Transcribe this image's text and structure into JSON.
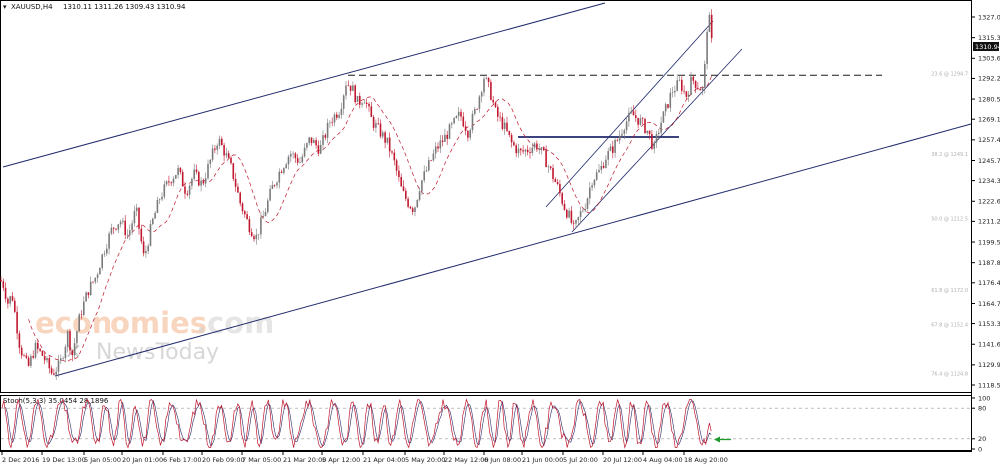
{
  "header": {
    "symbol": "XAUUSD,H4",
    "ohlc": "1310.11 1311.26 1309.43 1310.94"
  },
  "stoch_label": "Stoch(5,3,3) 35.0454 28.1896",
  "current_price": "1310.94",
  "watermark": {
    "part1": "econ",
    "part2": "omies",
    "part3": ".com",
    "part4": "NewsToday"
  },
  "colors": {
    "bull": "#7a7a7a",
    "bear": "#c0182e",
    "channel": "#1f2a6b",
    "dash": "#1a1a1a",
    "stoch_main": "#c0182e",
    "stoch_signal": "#2a2a6b",
    "arrow": "#1e9b2e",
    "fib": "#c8c8c8"
  },
  "chart_data": {
    "type": "candlestick",
    "title": "XAUUSD,H4",
    "price_ticks": [
      1327.0,
      1315.3,
      1303.6,
      1292.2,
      1280.5,
      1269.1,
      1257.4,
      1245.7,
      1234.3,
      1222.6,
      1211.2,
      1199.5,
      1187.8,
      1176.4,
      1164.7,
      1153.3,
      1141.6,
      1129.9,
      1118.5
    ],
    "ylim": [
      1116.7,
      1333.8
    ],
    "time_labels": [
      "2 Dec 2016",
      "19 Dec 13:00",
      "5 Jan 05:00",
      "20 Jan 01:00",
      "6 Feb 17:00",
      "20 Feb 09:00",
      "7 Mar 05:00",
      "21 Mar 20:00",
      "5 Apr 12:00",
      "21 Apr 04:00",
      "5 May 20:00",
      "22 May 12:00",
      "6 Jun 08:00",
      "21 Jun 00:00",
      "5 Jul 20:00",
      "20 Jul 12:00",
      "4 Aug 04:00",
      "18 Aug 20:00"
    ],
    "price_path": [
      [
        0,
        1178
      ],
      [
        3,
        1176
      ],
      [
        8,
        1165
      ],
      [
        12,
        1170
      ],
      [
        20,
        1140
      ],
      [
        28,
        1128
      ],
      [
        35,
        1140
      ],
      [
        43,
        1135
      ],
      [
        52,
        1125
      ],
      [
        60,
        1130
      ],
      [
        68,
        1148
      ],
      [
        72,
        1135
      ],
      [
        80,
        1158
      ],
      [
        88,
        1172
      ],
      [
        96,
        1180
      ],
      [
        104,
        1195
      ],
      [
        112,
        1207
      ],
      [
        120,
        1212
      ],
      [
        128,
        1203
      ],
      [
        136,
        1218
      ],
      [
        144,
        1190
      ],
      [
        152,
        1210
      ],
      [
        160,
        1225
      ],
      [
        170,
        1235
      ],
      [
        178,
        1240
      ],
      [
        186,
        1228
      ],
      [
        194,
        1238
      ],
      [
        202,
        1232
      ],
      [
        210,
        1245
      ],
      [
        218,
        1258
      ],
      [
        225,
        1250
      ],
      [
        232,
        1240
      ],
      [
        240,
        1222
      ],
      [
        248,
        1210
      ],
      [
        256,
        1202
      ],
      [
        264,
        1215
      ],
      [
        272,
        1230
      ],
      [
        280,
        1240
      ],
      [
        290,
        1250
      ],
      [
        300,
        1245
      ],
      [
        310,
        1258
      ],
      [
        320,
        1252
      ],
      [
        330,
        1268
      ],
      [
        340,
        1275
      ],
      [
        346,
        1290
      ],
      [
        352,
        1287
      ],
      [
        358,
        1278
      ],
      [
        364,
        1282
      ],
      [
        372,
        1268
      ],
      [
        380,
        1262
      ],
      [
        388,
        1255
      ],
      [
        394,
        1245
      ],
      [
        402,
        1228
      ],
      [
        408,
        1222
      ],
      [
        414,
        1218
      ],
      [
        420,
        1232
      ],
      [
        428,
        1242
      ],
      [
        436,
        1252
      ],
      [
        444,
        1258
      ],
      [
        452,
        1265
      ],
      [
        460,
        1272
      ],
      [
        468,
        1262
      ],
      [
        476,
        1275
      ],
      [
        484,
        1293
      ],
      [
        490,
        1285
      ],
      [
        496,
        1272
      ],
      [
        504,
        1265
      ],
      [
        512,
        1255
      ],
      [
        520,
        1250
      ],
      [
        528,
        1252
      ],
      [
        536,
        1255
      ],
      [
        544,
        1248
      ],
      [
        552,
        1238
      ],
      [
        558,
        1230
      ],
      [
        564,
        1220
      ],
      [
        570,
        1213
      ],
      [
        574,
        1206
      ],
      [
        580,
        1215
      ],
      [
        586,
        1222
      ],
      [
        592,
        1235
      ],
      [
        600,
        1240
      ],
      [
        606,
        1248
      ],
      [
        612,
        1252
      ],
      [
        618,
        1258
      ],
      [
        624,
        1266
      ],
      [
        632,
        1272
      ],
      [
        640,
        1268
      ],
      [
        648,
        1262
      ],
      [
        654,
        1252
      ],
      [
        660,
        1266
      ],
      [
        666,
        1275
      ],
      [
        672,
        1285
      ],
      [
        680,
        1290
      ],
      [
        686,
        1282
      ],
      [
        692,
        1292
      ],
      [
        698,
        1288
      ],
      [
        704,
        1285
      ],
      [
        706,
        1318
      ],
      [
        709,
        1327
      ],
      [
        712,
        1311
      ]
    ],
    "stoch_levels": [
      80,
      20
    ],
    "stoch_current": [
      35.0454,
      28.1896
    ],
    "reference_levels": [
      {
        "kind": "dashed",
        "value": 1294
      },
      {
        "kind": "solid",
        "value": 1259
      }
    ],
    "fib_levels": [
      {
        "text": "23.6 @ 1294.7",
        "value": 1294.7
      },
      {
        "text": "38.2 @ 1249.1",
        "value": 1249.1
      },
      {
        "text": "50.0 @ 1212.5",
        "value": 1212.5
      },
      {
        "text": "61.8 @ 1172.0",
        "value": 1172.0
      },
      {
        "text": "67.8 @ 1152.4",
        "value": 1152.4
      },
      {
        "text": "76.4 @ 1124.8",
        "value": 1124.8
      }
    ]
  }
}
